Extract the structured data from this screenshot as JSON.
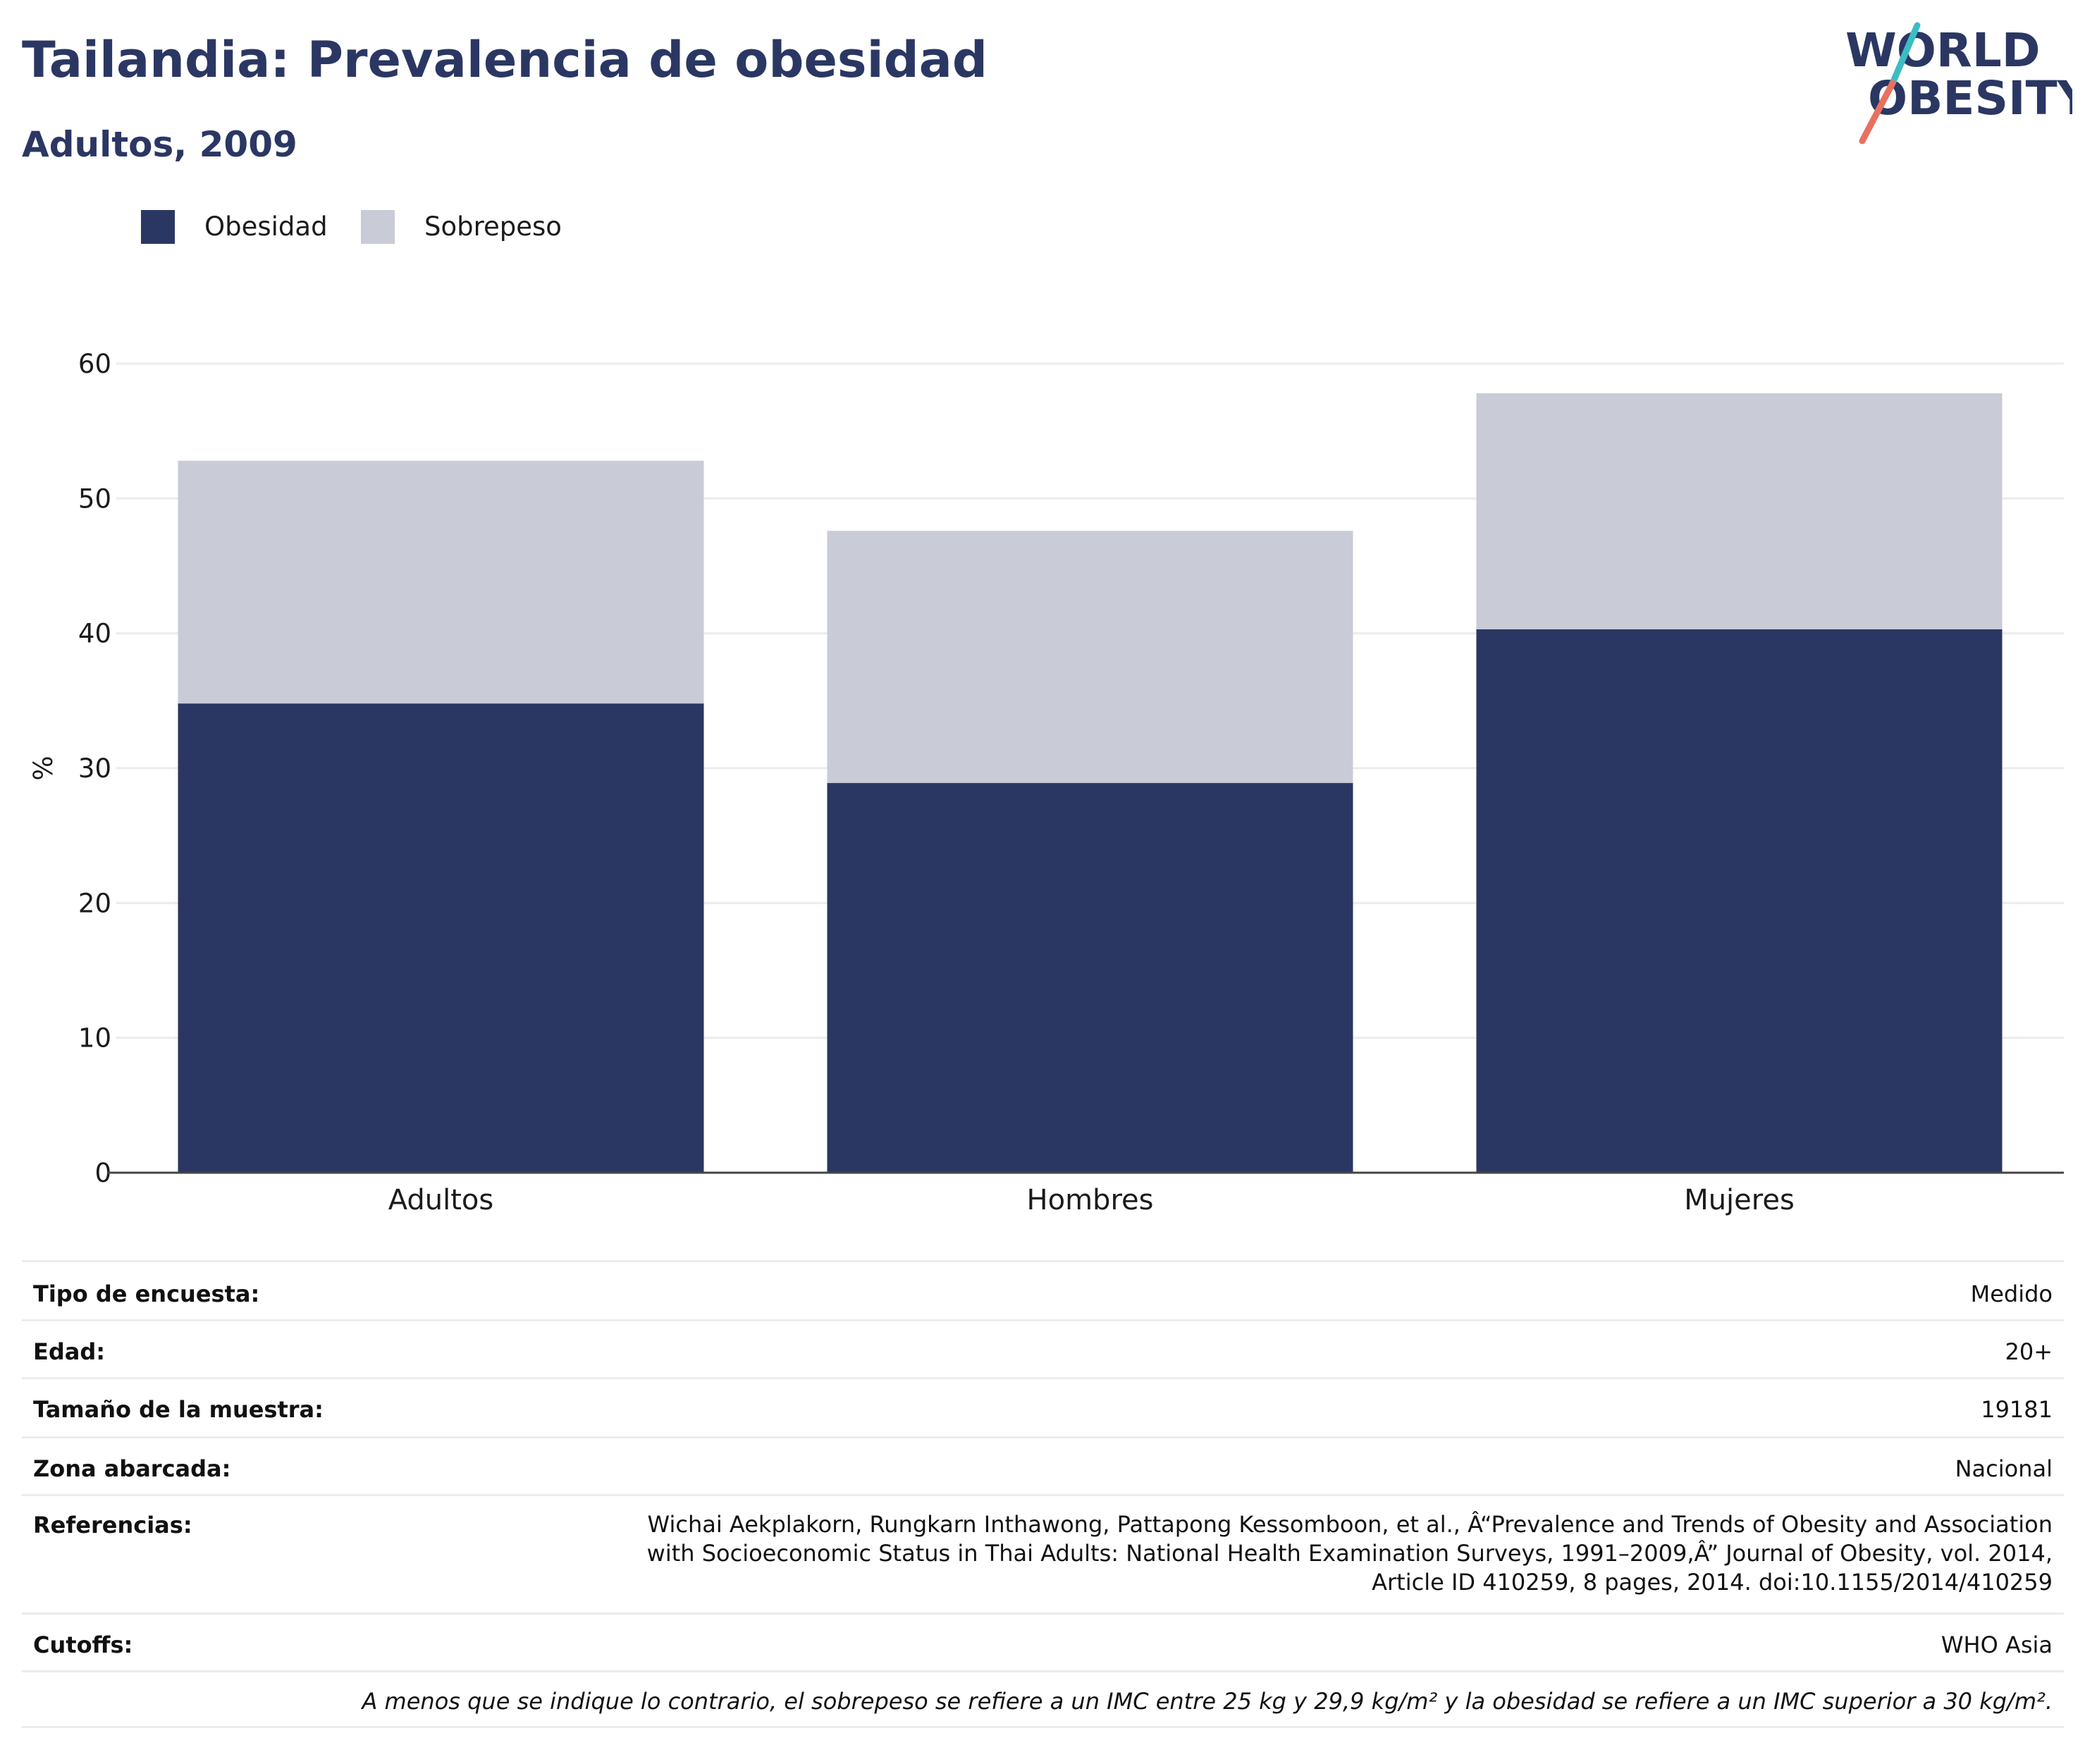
{
  "header": {
    "title": "Tailandia: Prevalencia de obesidad",
    "subtitle": "Adultos, 2009",
    "logo_line1": "WORLD",
    "logo_line2": "OBESITY"
  },
  "colors": {
    "obesidad": "#2b3763",
    "sobrepeso": "#c9cbd6",
    "logo_text": "#2b3763",
    "logo_slash_top": "#3bbdc4",
    "logo_slash_bottom": "#e8705f",
    "grid": "#ececec"
  },
  "chart_data": {
    "type": "bar",
    "stacked": true,
    "categories": [
      "Adultos",
      "Hombres",
      "Mujeres"
    ],
    "series": [
      {
        "name": "Obesidad",
        "values": [
          34.8,
          28.9,
          40.3
        ]
      },
      {
        "name": "Sobrepeso",
        "values": [
          18.0,
          18.7,
          17.5
        ]
      }
    ],
    "ylabel": "%",
    "ylim": [
      0,
      60
    ],
    "yticks": [
      0,
      10,
      20,
      30,
      40,
      50,
      60
    ],
    "grid": true,
    "legend_position": "top-left"
  },
  "info_table": [
    {
      "key": "Tipo de encuesta:",
      "value": "Medido"
    },
    {
      "key": "Edad:",
      "value": "20+"
    },
    {
      "key": "Tamaño de la muestra:",
      "value": "19181"
    },
    {
      "key": "Zona abarcada:",
      "value": "Nacional"
    },
    {
      "key": "Referencias:",
      "value": "Wichai Aekplakorn, Rungkarn Inthawong, Pattapong Kessomboon, et al., Â“Prevalence and Trends of Obesity and Association with Socioeconomic Status in Thai Adults: National Health Examination Surveys, 1991–2009,Â” Journal of Obesity, vol. 2014, Article ID 410259, 8 pages, 2014. doi:10.1155/2014/410259"
    },
    {
      "key": "Cutoffs:",
      "value": "WHO Asia"
    }
  ],
  "footnote": "A menos que se indique lo contrario, el sobrepeso se refiere a un IMC entre 25 kg y 29,9 kg/m² y la obesidad se refiere a un IMC superior a 30 kg/m²."
}
